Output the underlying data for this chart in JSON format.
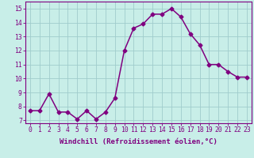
{
  "x": [
    0,
    1,
    2,
    3,
    4,
    5,
    6,
    7,
    8,
    9,
    10,
    11,
    12,
    13,
    14,
    15,
    16,
    17,
    18,
    19,
    20,
    21,
    22,
    23
  ],
  "y": [
    7.7,
    7.7,
    8.9,
    7.6,
    7.6,
    7.1,
    7.7,
    7.1,
    7.6,
    8.6,
    12.0,
    13.6,
    13.9,
    14.6,
    14.6,
    15.0,
    14.4,
    13.2,
    12.4,
    11.0,
    11.0,
    10.5,
    10.1,
    10.1
  ],
  "line_color": "#800080",
  "marker": "D",
  "marker_size": 2.5,
  "bg_color": "#c8eee8",
  "grid_color": "#a0cccc",
  "xlabel": "Windchill (Refroidissement éolien,°C)",
  "xlabel_fontsize": 6.5,
  "xlim": [
    -0.5,
    23.5
  ],
  "ylim": [
    6.8,
    15.5
  ],
  "yticks": [
    7,
    8,
    9,
    10,
    11,
    12,
    13,
    14,
    15
  ],
  "xticks": [
    0,
    1,
    2,
    3,
    4,
    5,
    6,
    7,
    8,
    9,
    10,
    11,
    12,
    13,
    14,
    15,
    16,
    17,
    18,
    19,
    20,
    21,
    22,
    23
  ],
  "tick_fontsize": 5.8,
  "line_width": 1.1
}
